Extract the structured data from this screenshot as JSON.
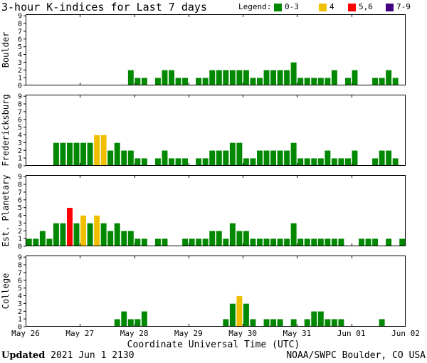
{
  "title": "3-hour K-indices for Last 7 days",
  "legend": {
    "label": "Legend:",
    "items": [
      {
        "label": "0-3",
        "color": "#008800"
      },
      {
        "label": "4",
        "color": "#f0c000"
      },
      {
        "label": "5,6",
        "color": "#ff0000"
      },
      {
        "label": "7-9",
        "color": "#400080"
      }
    ]
  },
  "xlabel": "Coordinate Universal Time (UTC)",
  "updated": {
    "label": "Updated",
    "value": "2021 Jun  1 2130"
  },
  "credit": "NOAA/SWPC Boulder, CO USA",
  "chart_data": {
    "type": "bar",
    "x_ticks": [
      "May 26",
      "May 27",
      "May 28",
      "May 29",
      "May 30",
      "May 31",
      "Jun 01",
      "Jun 02"
    ],
    "y_ticks": [
      "0",
      "1",
      "2",
      "3",
      "4",
      "5",
      "6",
      "7",
      "8",
      "9"
    ],
    "ylim": [
      0,
      9
    ],
    "bins_per_day": 8,
    "panels": [
      {
        "name": "Boulder",
        "values": [
          0,
          0,
          0,
          0,
          0,
          0,
          0,
          0,
          0,
          0,
          0,
          0,
          0,
          0,
          0,
          2,
          1,
          1,
          0,
          1,
          2,
          2,
          1,
          1,
          0,
          1,
          1,
          2,
          2,
          2,
          2,
          2,
          2,
          1,
          1,
          2,
          2,
          2,
          2,
          3,
          1,
          1,
          1,
          1,
          1,
          2,
          0,
          1,
          2,
          0,
          0,
          1,
          1,
          2,
          1,
          0
        ]
      },
      {
        "name": "Fredericksburg",
        "values": [
          0,
          0,
          0,
          0,
          3,
          3,
          3,
          3,
          3,
          3,
          4,
          4,
          2,
          3,
          2,
          2,
          1,
          1,
          0,
          1,
          2,
          1,
          1,
          1,
          0,
          1,
          1,
          2,
          2,
          2,
          3,
          3,
          1,
          1,
          2,
          2,
          2,
          2,
          2,
          3,
          1,
          1,
          1,
          1,
          2,
          1,
          1,
          1,
          2,
          0,
          0,
          1,
          2,
          2,
          1,
          0
        ]
      },
      {
        "name": "Est. Planetary",
        "values": [
          1,
          1,
          2,
          1,
          3,
          3,
          5,
          3,
          4,
          3,
          4,
          3,
          2,
          3,
          2,
          2,
          1,
          1,
          0,
          1,
          1,
          0,
          0,
          1,
          1,
          1,
          1,
          2,
          2,
          1,
          3,
          2,
          2,
          1,
          1,
          1,
          1,
          1,
          1,
          3,
          1,
          1,
          1,
          1,
          1,
          1,
          1,
          0,
          0,
          1,
          1,
          1,
          0,
          1,
          0,
          1
        ]
      },
      {
        "name": "College",
        "values": [
          0,
          0,
          0,
          0,
          0,
          0,
          0,
          0,
          0,
          0,
          0,
          0,
          0,
          1,
          2,
          1,
          1,
          2,
          0,
          0,
          0,
          0,
          0,
          0,
          0,
          0,
          0,
          0,
          0,
          1,
          3,
          4,
          3,
          1,
          0,
          1,
          1,
          1,
          0,
          1,
          0,
          1,
          2,
          2,
          1,
          1,
          1,
          0,
          0,
          0,
          0,
          0,
          1,
          0,
          0,
          0
        ]
      }
    ]
  }
}
